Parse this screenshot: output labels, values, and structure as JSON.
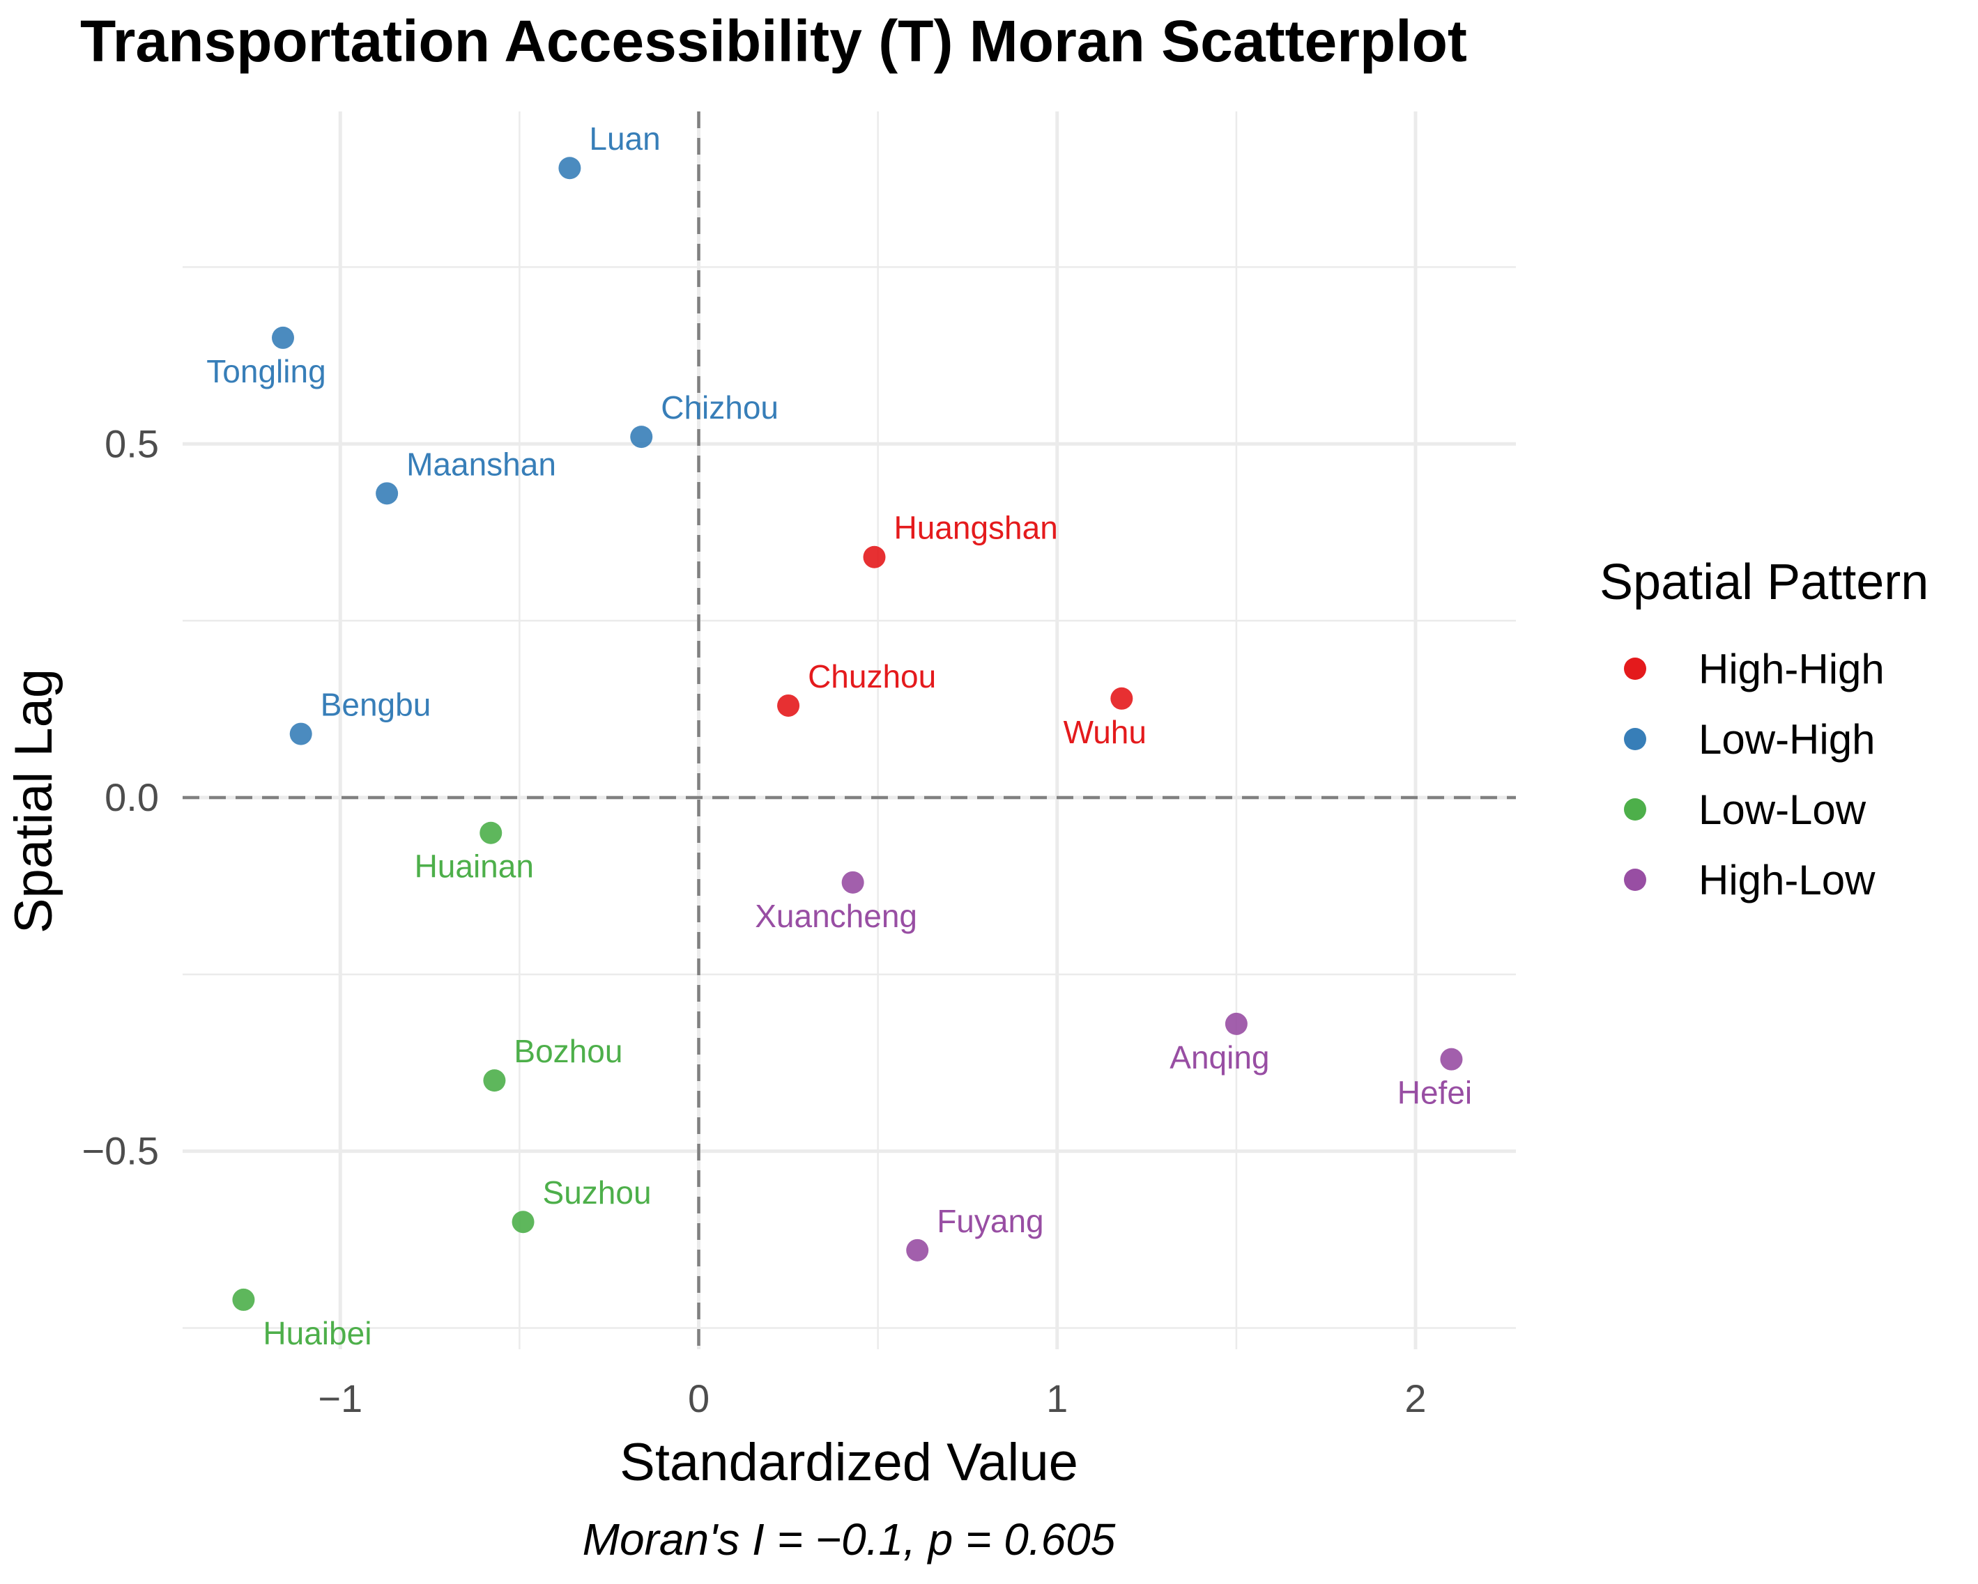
{
  "chart_data": {
    "type": "scatter",
    "title": "Transportation Accessibility (T) Moran Scatterplot",
    "xlabel": "Standardized Value",
    "ylabel": "Spatial Lag",
    "caption": "Moran's I = −0.1, p = 0.605",
    "xlim": [
      -1.44,
      2.28
    ],
    "ylim": [
      -0.78,
      0.97
    ],
    "x_ticks": [
      {
        "value": -1,
        "label": "−1"
      },
      {
        "value": 0,
        "label": "0"
      },
      {
        "value": 1,
        "label": "1"
      },
      {
        "value": 2,
        "label": "2"
      }
    ],
    "y_ticks": [
      {
        "value": -0.5,
        "label": "−0.5"
      },
      {
        "value": 0,
        "label": "0.0"
      },
      {
        "value": 0.5,
        "label": "0.5"
      }
    ],
    "grid": true,
    "reference_lines": {
      "x": 0,
      "y": 0
    },
    "legend": {
      "title": "Spatial Pattern",
      "position": "right",
      "entries": [
        {
          "name": "High-High",
          "color": "#e41a1c"
        },
        {
          "name": "Low-High",
          "color": "#377eb8"
        },
        {
          "name": "Low-Low",
          "color": "#4daf4a"
        },
        {
          "name": "High-Low",
          "color": "#984ea3"
        }
      ]
    },
    "points": [
      {
        "name": "Luan",
        "x": -0.36,
        "y": 0.89,
        "pattern": "Low-High",
        "label_pos": "above-right"
      },
      {
        "name": "Tongling",
        "x": -1.16,
        "y": 0.65,
        "pattern": "Low-High",
        "label_pos": "below-left"
      },
      {
        "name": "Chizhou",
        "x": -0.16,
        "y": 0.51,
        "pattern": "Low-High",
        "label_pos": "above-right"
      },
      {
        "name": "Maanshan",
        "x": -0.87,
        "y": 0.43,
        "pattern": "Low-High",
        "label_pos": "above-right"
      },
      {
        "name": "Bengbu",
        "x": -1.11,
        "y": 0.09,
        "pattern": "Low-High",
        "label_pos": "above-right"
      },
      {
        "name": "Huangshan",
        "x": 0.49,
        "y": 0.34,
        "pattern": "High-High",
        "label_pos": "above-right"
      },
      {
        "name": "Chuzhou",
        "x": 0.25,
        "y": 0.13,
        "pattern": "High-High",
        "label_pos": "above-right"
      },
      {
        "name": "Wuhu",
        "x": 1.18,
        "y": 0.14,
        "pattern": "High-High",
        "label_pos": "below-left"
      },
      {
        "name": "Huainan",
        "x": -0.58,
        "y": -0.05,
        "pattern": "Low-Low",
        "label_pos": "below-left"
      },
      {
        "name": "Bozhou",
        "x": -0.57,
        "y": -0.4,
        "pattern": "Low-Low",
        "label_pos": "above-right"
      },
      {
        "name": "Suzhou",
        "x": -0.49,
        "y": -0.6,
        "pattern": "Low-Low",
        "label_pos": "above-right"
      },
      {
        "name": "Huaibei",
        "x": -1.27,
        "y": -0.71,
        "pattern": "Low-Low",
        "label_pos": "below-right"
      },
      {
        "name": "Xuancheng",
        "x": 0.43,
        "y": -0.12,
        "pattern": "High-Low",
        "label_pos": "below-left"
      },
      {
        "name": "Anqing",
        "x": 1.5,
        "y": -0.32,
        "pattern": "High-Low",
        "label_pos": "below-left"
      },
      {
        "name": "Hefei",
        "x": 2.1,
        "y": -0.37,
        "pattern": "High-Low",
        "label_pos": "below-left"
      },
      {
        "name": "Fuyang",
        "x": 0.61,
        "y": -0.64,
        "pattern": "High-Low",
        "label_pos": "above-right"
      }
    ]
  }
}
